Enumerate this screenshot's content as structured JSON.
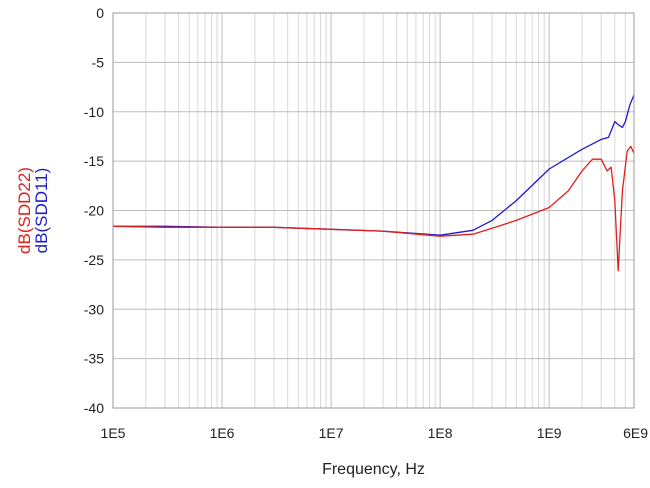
{
  "chart_data": {
    "type": "line",
    "title": "",
    "xlabel": "Frequency, Hz",
    "x_scale": "log",
    "xlim": [
      100000,
      6000000000
    ],
    "ylim": [
      -40,
      0
    ],
    "x_ticks": [
      {
        "value": 100000,
        "label": "1E5"
      },
      {
        "value": 1000000,
        "label": "1E6"
      },
      {
        "value": 10000000,
        "label": "1E7"
      },
      {
        "value": 100000000,
        "label": "1E8"
      },
      {
        "value": 1000000000,
        "label": "1E9"
      },
      {
        "value": 6000000000,
        "label": "6E9"
      }
    ],
    "y_ticks": [
      {
        "value": 0,
        "label": "0"
      },
      {
        "value": -5,
        "label": "-5"
      },
      {
        "value": -10,
        "label": "-10"
      },
      {
        "value": -15,
        "label": "-15"
      },
      {
        "value": -20,
        "label": "-20"
      },
      {
        "value": -25,
        "label": "-25"
      },
      {
        "value": -30,
        "label": "-30"
      },
      {
        "value": -35,
        "label": "-35"
      },
      {
        "value": -40,
        "label": "-40"
      }
    ],
    "grid": true,
    "ylabels": [
      {
        "text": "dB(SDD22)",
        "color": "#e0201c"
      },
      {
        "text": "dB(SDD11)",
        "color": "#1c1cc8"
      }
    ],
    "series": [
      {
        "name": "dB(SDD11)",
        "color": "#1c1cc8",
        "points": [
          [
            100000,
            -21.6
          ],
          [
            300000,
            -21.6
          ],
          [
            1000000,
            -21.7
          ],
          [
            3000000,
            -21.7
          ],
          [
            10000000,
            -21.9
          ],
          [
            30000000,
            -22.1
          ],
          [
            100000000,
            -22.5
          ],
          [
            200000000,
            -22.0
          ],
          [
            300000000,
            -21.0
          ],
          [
            500000000,
            -19.0
          ],
          [
            1000000000,
            -15.8
          ],
          [
            2000000000,
            -13.8
          ],
          [
            3000000000,
            -12.8
          ],
          [
            3500000000,
            -12.6
          ],
          [
            4000000000,
            -11.0
          ],
          [
            4300000000,
            -11.3
          ],
          [
            4700000000,
            -11.6
          ],
          [
            5000000000,
            -11.0
          ],
          [
            5500000000,
            -9.3
          ],
          [
            6000000000,
            -8.3
          ]
        ]
      },
      {
        "name": "dB(SDD22)",
        "color": "#e0201c",
        "points": [
          [
            100000,
            -21.6
          ],
          [
            300000,
            -21.7
          ],
          [
            1000000,
            -21.7
          ],
          [
            3000000,
            -21.7
          ],
          [
            10000000,
            -21.9
          ],
          [
            30000000,
            -22.1
          ],
          [
            100000000,
            -22.6
          ],
          [
            200000000,
            -22.4
          ],
          [
            300000000,
            -21.8
          ],
          [
            500000000,
            -21.0
          ],
          [
            1000000000,
            -19.7
          ],
          [
            1500000000,
            -18.0
          ],
          [
            2000000000,
            -16.0
          ],
          [
            2500000000,
            -14.8
          ],
          [
            3000000000,
            -14.8
          ],
          [
            3400000000,
            -16.0
          ],
          [
            3700000000,
            -15.6
          ],
          [
            4000000000,
            -19.0
          ],
          [
            4300000000,
            -26.1
          ],
          [
            4700000000,
            -18.0
          ],
          [
            5200000000,
            -14.0
          ],
          [
            5600000000,
            -13.5
          ],
          [
            6000000000,
            -14.2
          ]
        ]
      }
    ]
  }
}
